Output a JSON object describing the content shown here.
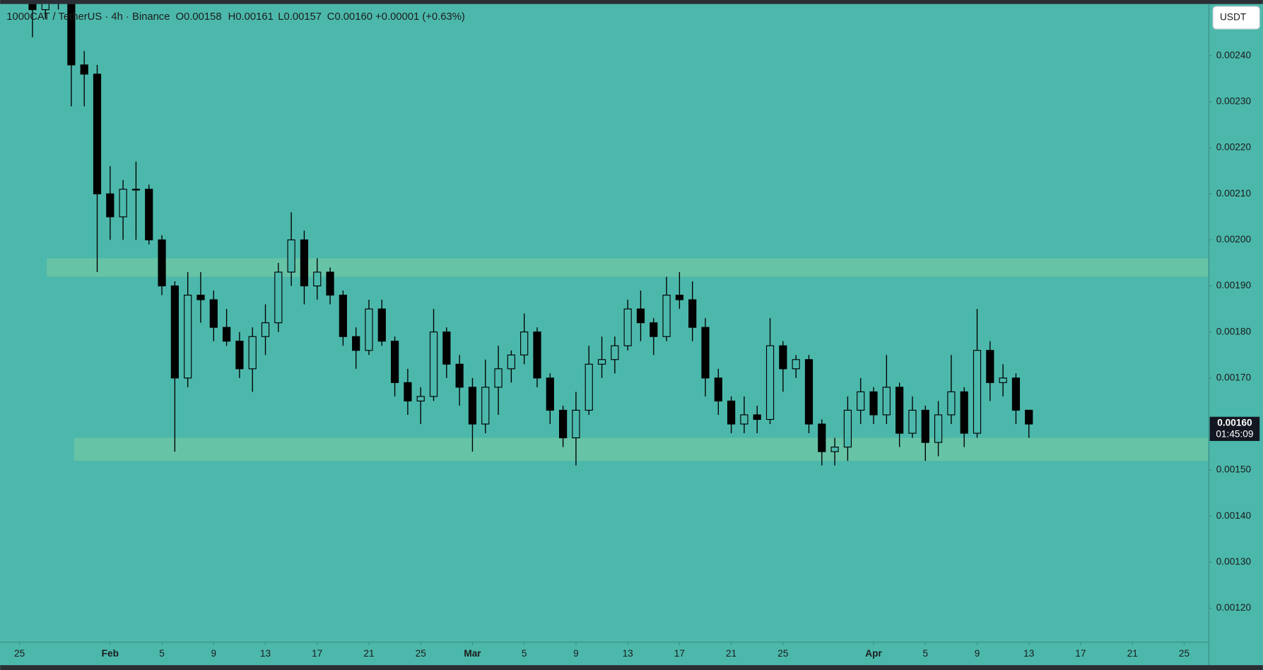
{
  "chart_data": {
    "type": "candlestick",
    "header": {
      "symbol": "1000CAT / TetherUS · 4h · Binance",
      "open": "O0.00158",
      "high": "H0.00161",
      "low": "L0.00157",
      "close": "C0.00160",
      "change": "+0.00001 (+0.63%)"
    },
    "currency": "USDT",
    "x": [
      26,
      27,
      28,
      29,
      30,
      31,
      32,
      33,
      34,
      35,
      36,
      37,
      38,
      39,
      40,
      41,
      42,
      43,
      44,
      45,
      46,
      47,
      48,
      49,
      50,
      51,
      52,
      53,
      54,
      55,
      56,
      57,
      58,
      59,
      60,
      61,
      62,
      63,
      64,
      65,
      66,
      67,
      68,
      69,
      70,
      71,
      72,
      73,
      74,
      75,
      76,
      77,
      78,
      79,
      80,
      81,
      82,
      83,
      84,
      85,
      86,
      87,
      88,
      89,
      90,
      91,
      92,
      93,
      94,
      95,
      96,
      97,
      98,
      99,
      100,
      101,
      102,
      103
    ],
    "open": [
      0.00252,
      0.0025,
      0.00255,
      0.00252,
      0.00238,
      0.00236,
      0.0021,
      0.00205,
      0.00211,
      0.00211,
      0.002,
      0.0019,
      0.0017,
      0.00188,
      0.00187,
      0.00181,
      0.00178,
      0.00172,
      0.00179,
      0.00182,
      0.00193,
      0.002,
      0.0019,
      0.00193,
      0.00188,
      0.00179,
      0.00176,
      0.00185,
      0.00178,
      0.00169,
      0.00165,
      0.00166,
      0.0018,
      0.00173,
      0.00168,
      0.0016,
      0.00168,
      0.00172,
      0.00175,
      0.0018,
      0.0017,
      0.00163,
      0.00157,
      0.00163,
      0.00173,
      0.00174,
      0.00177,
      0.00185,
      0.00182,
      0.00179,
      0.00188,
      0.00187,
      0.00181,
      0.0017,
      0.00165,
      0.0016,
      0.00162,
      0.00161,
      0.00177,
      0.00172,
      0.00174,
      0.0016,
      0.00154,
      0.00155,
      0.00163,
      0.00167,
      0.00162,
      0.00168,
      0.00158,
      0.00163,
      0.00156,
      0.00162,
      0.00167,
      0.00158,
      0.00176,
      0.00169,
      0.0017,
      0.00163
    ],
    "high": [
      0.00254,
      0.00258,
      0.00258,
      0.00254,
      0.00241,
      0.00238,
      0.00216,
      0.00213,
      0.00217,
      0.00212,
      0.00201,
      0.00191,
      0.00193,
      0.00193,
      0.00189,
      0.00185,
      0.0018,
      0.00181,
      0.00186,
      0.00195,
      0.00206,
      0.00202,
      0.00196,
      0.00194,
      0.00189,
      0.00181,
      0.00187,
      0.00187,
      0.00179,
      0.00172,
      0.00168,
      0.00185,
      0.00181,
      0.00175,
      0.0017,
      0.00174,
      0.00177,
      0.00176,
      0.00184,
      0.00181,
      0.00171,
      0.00164,
      0.00167,
      0.00177,
      0.00179,
      0.00179,
      0.00187,
      0.00189,
      0.00183,
      0.00192,
      0.00193,
      0.00191,
      0.00183,
      0.00172,
      0.00166,
      0.00166,
      0.00164,
      0.00183,
      0.00178,
      0.00175,
      0.00175,
      0.00161,
      0.00157,
      0.00166,
      0.0017,
      0.00168,
      0.00175,
      0.00169,
      0.00166,
      0.00164,
      0.00165,
      0.00175,
      0.00168,
      0.00185,
      0.00178,
      0.00173,
      0.00171,
      0.00163
    ],
    "low": [
      0.00244,
      0.00248,
      0.0025,
      0.00229,
      0.00229,
      0.00193,
      0.002,
      0.002,
      0.002,
      0.00199,
      0.00188,
      0.00154,
      0.00168,
      0.00182,
      0.00178,
      0.00177,
      0.0017,
      0.00167,
      0.00175,
      0.0018,
      0.0019,
      0.00186,
      0.00187,
      0.00186,
      0.00177,
      0.00172,
      0.00175,
      0.00177,
      0.00166,
      0.00162,
      0.0016,
      0.00165,
      0.0017,
      0.00164,
      0.00154,
      0.00158,
      0.00162,
      0.00169,
      0.00173,
      0.00168,
      0.0016,
      0.00155,
      0.00151,
      0.00162,
      0.0017,
      0.00171,
      0.00176,
      0.00178,
      0.00175,
      0.00178,
      0.00185,
      0.00178,
      0.00166,
      0.00162,
      0.00158,
      0.00158,
      0.00158,
      0.0016,
      0.00167,
      0.0017,
      0.00158,
      0.00151,
      0.00151,
      0.00152,
      0.0016,
      0.0016,
      0.0016,
      0.00155,
      0.00157,
      0.00152,
      0.00153,
      0.0016,
      0.00155,
      0.00157,
      0.00165,
      0.00166,
      0.0016,
      0.00157
    ],
    "close": [
      0.0025,
      0.00255,
      0.00252,
      0.00238,
      0.00236,
      0.0021,
      0.00205,
      0.00211,
      0.00211,
      0.002,
      0.0019,
      0.0017,
      0.00188,
      0.00187,
      0.00181,
      0.00178,
      0.00172,
      0.00179,
      0.00182,
      0.00193,
      0.002,
      0.0019,
      0.00193,
      0.00188,
      0.00179,
      0.00176,
      0.00185,
      0.00178,
      0.00169,
      0.00165,
      0.00166,
      0.0018,
      0.00173,
      0.00168,
      0.0016,
      0.00168,
      0.00172,
      0.00175,
      0.0018,
      0.0017,
      0.00163,
      0.00157,
      0.00163,
      0.00173,
      0.00174,
      0.00177,
      0.00185,
      0.00182,
      0.00179,
      0.00188,
      0.00187,
      0.00181,
      0.0017,
      0.00165,
      0.0016,
      0.00162,
      0.00161,
      0.00177,
      0.00172,
      0.00174,
      0.0016,
      0.00154,
      0.00155,
      0.00163,
      0.00167,
      0.00162,
      0.00168,
      0.00158,
      0.00163,
      0.00156,
      0.00162,
      0.00167,
      0.00158,
      0.00176,
      0.00169,
      0.0017,
      0.00163,
      0.0016
    ],
    "color": "#000000",
    "zones": [
      {
        "low": 0.00192,
        "high": 0.00196,
        "start": 27.1,
        "color": "#6cc4a4"
      },
      {
        "low": 0.00152,
        "high": 0.00157,
        "start": 29.2,
        "color": "#6cc4a4"
      }
    ],
    "xlim": [
      23.5,
      116.85
    ],
    "xticks": [
      25,
      {
        "value": 32,
        "label": "Feb"
      },
      {
        "value": 36,
        "label": "5"
      },
      {
        "value": 40,
        "label": "9"
      },
      {
        "value": 44,
        "label": "13"
      },
      {
        "value": 48,
        "label": "17"
      },
      {
        "value": 52,
        "label": "21"
      },
      {
        "value": 56,
        "label": "25"
      },
      {
        "value": 60,
        "label": "Mar"
      },
      {
        "value": 64,
        "label": "5"
      },
      {
        "value": 68,
        "label": "9"
      },
      {
        "value": 72,
        "label": "13"
      },
      {
        "value": 76,
        "label": "17"
      },
      {
        "value": 80,
        "label": "21"
      },
      {
        "value": 84,
        "label": "25"
      },
      {
        "value": 91,
        "label": "Apr"
      },
      {
        "value": 95,
        "label": "5"
      },
      {
        "value": 99,
        "label": "9"
      },
      {
        "value": 103,
        "label": "13"
      },
      {
        "value": 107,
        "label": "17"
      },
      {
        "value": 111,
        "label": "21"
      },
      {
        "value": 115,
        "label": "25"
      }
    ],
    "ylim": [
      0.001127,
      0.002521
    ],
    "yticks": [
      {
        "value": 0.0012,
        "label": "0.00120"
      },
      {
        "value": 0.0013,
        "label": "0.00130"
      },
      {
        "value": 0.0014,
        "label": "0.00140"
      },
      {
        "value": 0.0015,
        "label": "0.00150"
      },
      {
        "value": 0.0016,
        "label": "0.00160"
      },
      {
        "value": 0.0017,
        "label": "0.00170"
      },
      {
        "value": 0.0018,
        "label": "0.00180"
      },
      {
        "value": 0.0019,
        "label": "0.00190"
      },
      {
        "value": 0.002,
        "label": "0.00200"
      },
      {
        "value": 0.0021,
        "label": "0.00210"
      },
      {
        "value": 0.0022,
        "label": "0.00220"
      },
      {
        "value": 0.0023,
        "label": "0.00230"
      },
      {
        "value": 0.0024,
        "label": "0.00240"
      }
    ],
    "last_price": {
      "value": 0.0016,
      "label": "0.00160",
      "countdown": "01:45:09"
    },
    "grid": false
  }
}
